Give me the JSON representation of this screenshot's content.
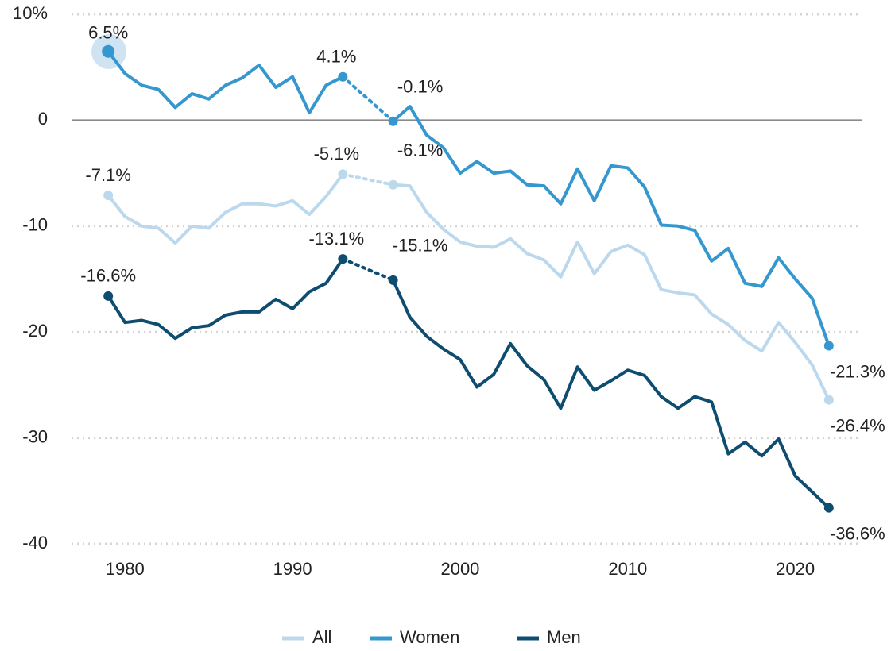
{
  "chart_data": {
    "type": "line",
    "x": [
      1979,
      1980,
      1981,
      1982,
      1983,
      1984,
      1985,
      1986,
      1987,
      1988,
      1989,
      1990,
      1991,
      1992,
      1993,
      1994,
      1995,
      1996,
      1997,
      1998,
      1999,
      2000,
      2001,
      2002,
      2003,
      2004,
      2005,
      2006,
      2007,
      2008,
      2009,
      2010,
      2011,
      2012,
      2013,
      2014,
      2015,
      2016,
      2017,
      2018,
      2019,
      2020,
      2021,
      2022
    ],
    "series": [
      {
        "name": "All",
        "color": "#bcd8ec",
        "values": [
          -7.1,
          -9.1,
          -10.0,
          -10.2,
          -11.6,
          -10.0,
          -10.2,
          -8.7,
          -7.9,
          -7.9,
          -8.1,
          -7.6,
          -8.9,
          -7.2,
          -5.1,
          null,
          null,
          -6.1,
          -6.2,
          -8.7,
          -10.3,
          -11.5,
          -11.9,
          -12.0,
          -11.2,
          -12.6,
          -13.2,
          -14.8,
          -11.5,
          -14.5,
          -12.4,
          -11.8,
          -12.7,
          -16.0,
          -16.3,
          -16.5,
          -18.3,
          -19.3,
          -20.8,
          -21.8,
          -19.1,
          -21.0,
          -23.1,
          -26.4
        ],
        "value_labels": [
          "-7.1%",
          null,
          null,
          null,
          null,
          null,
          null,
          null,
          null,
          null,
          null,
          null,
          null,
          null,
          "-5.1%",
          null,
          null,
          "-6.1%",
          null,
          null,
          null,
          null,
          null,
          null,
          null,
          null,
          null,
          null,
          null,
          null,
          null,
          null,
          null,
          null,
          null,
          null,
          null,
          null,
          null,
          null,
          null,
          null,
          null,
          "-26.4%"
        ]
      },
      {
        "name": "Women",
        "color": "#3497cf",
        "values": [
          6.5,
          4.4,
          3.3,
          2.9,
          1.2,
          2.5,
          2.0,
          3.3,
          4.0,
          5.2,
          3.1,
          4.1,
          0.7,
          3.3,
          4.1,
          null,
          null,
          -0.1,
          1.3,
          -1.4,
          -2.6,
          -5.0,
          -3.9,
          -5.0,
          -4.8,
          -6.1,
          -6.2,
          -7.9,
          -4.6,
          -7.6,
          -4.3,
          -4.5,
          -6.3,
          -9.9,
          -10.0,
          -10.4,
          -13.3,
          -12.1,
          -15.4,
          -15.7,
          -13.0,
          -15.0,
          -16.8,
          -21.3
        ],
        "value_labels": [
          "6.5%",
          null,
          null,
          null,
          null,
          null,
          null,
          null,
          null,
          null,
          null,
          null,
          null,
          null,
          "4.1%",
          null,
          null,
          "-0.1%",
          null,
          null,
          null,
          null,
          null,
          null,
          null,
          null,
          null,
          null,
          null,
          null,
          null,
          null,
          null,
          null,
          null,
          null,
          null,
          null,
          null,
          null,
          null,
          null,
          null,
          "-21.3%"
        ]
      },
      {
        "name": "Men",
        "color": "#0e4d70",
        "values": [
          -16.6,
          -19.1,
          -18.9,
          -19.3,
          -20.6,
          -19.6,
          -19.4,
          -18.4,
          -18.1,
          -18.1,
          -16.9,
          -17.8,
          -16.2,
          -15.4,
          -13.1,
          null,
          null,
          -15.1,
          -18.6,
          -20.4,
          -21.6,
          -22.6,
          -25.2,
          -24.0,
          -21.1,
          -23.2,
          -24.5,
          -27.2,
          -23.3,
          -25.5,
          -24.6,
          -23.6,
          -24.1,
          -26.1,
          -27.2,
          -26.1,
          -26.6,
          -31.5,
          -30.4,
          -31.7,
          -30.1,
          -33.6,
          -35.1,
          -36.6
        ],
        "value_labels": [
          "-16.6%",
          null,
          null,
          null,
          null,
          null,
          null,
          null,
          null,
          null,
          null,
          null,
          null,
          null,
          "-13.1%",
          null,
          null,
          "-15.1%",
          null,
          null,
          null,
          null,
          null,
          null,
          null,
          null,
          null,
          null,
          null,
          null,
          null,
          null,
          null,
          null,
          null,
          null,
          null,
          null,
          null,
          null,
          null,
          null,
          null,
          "-36.6%"
        ]
      }
    ],
    "xlim": [
      1977,
      2024
    ],
    "xticks": [
      1980,
      1990,
      2000,
      2010,
      2020
    ],
    "ylim": [
      -40,
      10
    ],
    "yticks": [
      {
        "value": 10,
        "label": "10%"
      },
      0,
      -10,
      -20,
      -30,
      -40
    ],
    "grid": true,
    "legend": "bottom"
  }
}
